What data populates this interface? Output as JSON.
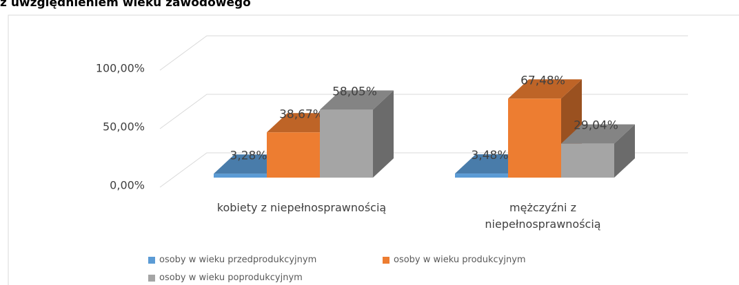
{
  "chart_data": {
    "type": "bar3d",
    "title": "z uwzględnieniem wieku zawodowego",
    "categories": [
      "kobiety z niepełnosprawnością",
      "mężczyźni z niepełnosprawnością"
    ],
    "series": [
      {
        "name": "osoby w wieku przedprodukcyjnym",
        "color": "#5b9bd5",
        "values": [
          3.28,
          3.48
        ],
        "value_labels": [
          "3,28%",
          "3,48%"
        ]
      },
      {
        "name": "osoby w wieku produkcyjnym",
        "color": "#ed7d31",
        "values": [
          38.67,
          67.48
        ],
        "value_labels": [
          "38,67%",
          "67,48%"
        ]
      },
      {
        "name": "osoby w wieku poprodukcyjnym",
        "color": "#a5a5a5",
        "values": [
          58.05,
          29.04
        ],
        "value_labels": [
          "58,05%",
          "29,04%"
        ]
      }
    ],
    "ylim": [
      0,
      100
    ],
    "yticks": [
      {
        "value": 0,
        "label": "0,00%"
      },
      {
        "value": 50,
        "label": "50,00%"
      },
      {
        "value": 100,
        "label": "100,00%"
      }
    ],
    "grid": true
  }
}
